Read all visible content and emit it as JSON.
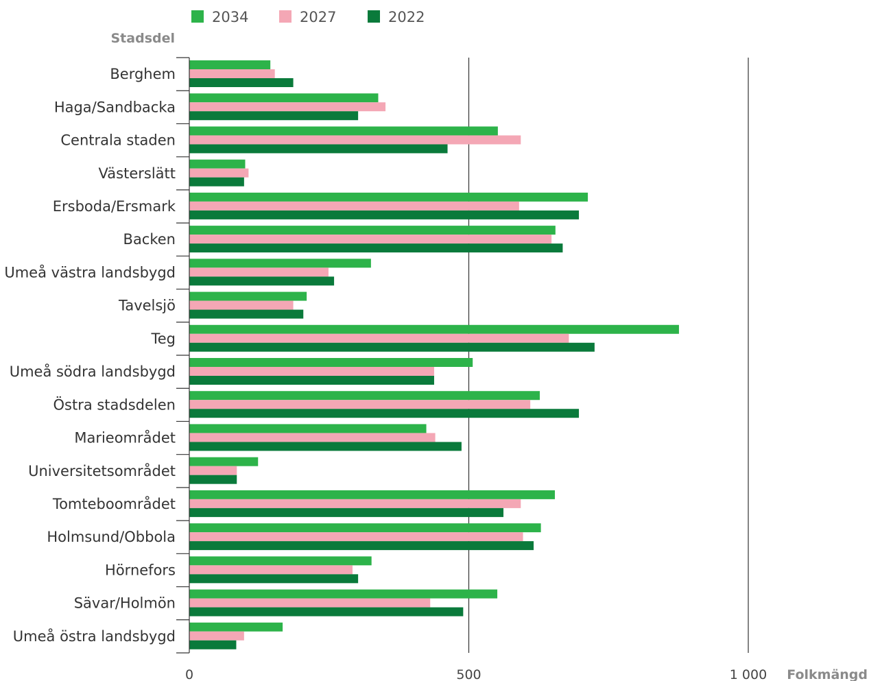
{
  "chart_data": {
    "type": "bar",
    "orientation": "horizontal",
    "ylabel": "Stadsdel",
    "xlabel": "Folkmängd",
    "xlim": [
      0,
      1000
    ],
    "xticks": [
      {
        "value": 0,
        "label": "0"
      },
      {
        "value": 500,
        "label": "500"
      },
      {
        "value": 1000,
        "label": "1 000"
      }
    ],
    "grid": true,
    "legend_position": "top",
    "categories": [
      "Berghem",
      "Haga/Sandbacka",
      "Centrala staden",
      "Västerslätt",
      "Ersboda/Ersmark",
      "Backen",
      "Umeå västra landsbygd",
      "Tavelsjö",
      "Teg",
      "Umeå södra landsbygd",
      "Östra stadsdelen",
      "Marieområdet",
      "Universitetsområdet",
      "Tomteboområdet",
      "Holmsund/Obbola",
      "Hörnefors",
      "Sävar/Holmön",
      "Umeå östra landsbygd"
    ],
    "series": [
      {
        "name": "2034",
        "color": "#2db34a",
        "values": [
          145,
          338,
          552,
          100,
          713,
          655,
          325,
          210,
          876,
          507,
          627,
          424,
          123,
          654,
          629,
          326,
          551,
          167
        ]
      },
      {
        "name": "2027",
        "color": "#f4a7b5",
        "values": [
          153,
          351,
          593,
          106,
          590,
          648,
          249,
          186,
          679,
          438,
          610,
          440,
          85,
          593,
          597,
          292,
          431,
          98
        ]
      },
      {
        "name": "2022",
        "color": "#0a7a3b",
        "values": [
          186,
          302,
          462,
          98,
          697,
          668,
          259,
          204,
          725,
          438,
          697,
          487,
          85,
          562,
          616,
          302,
          490,
          84
        ]
      }
    ]
  }
}
